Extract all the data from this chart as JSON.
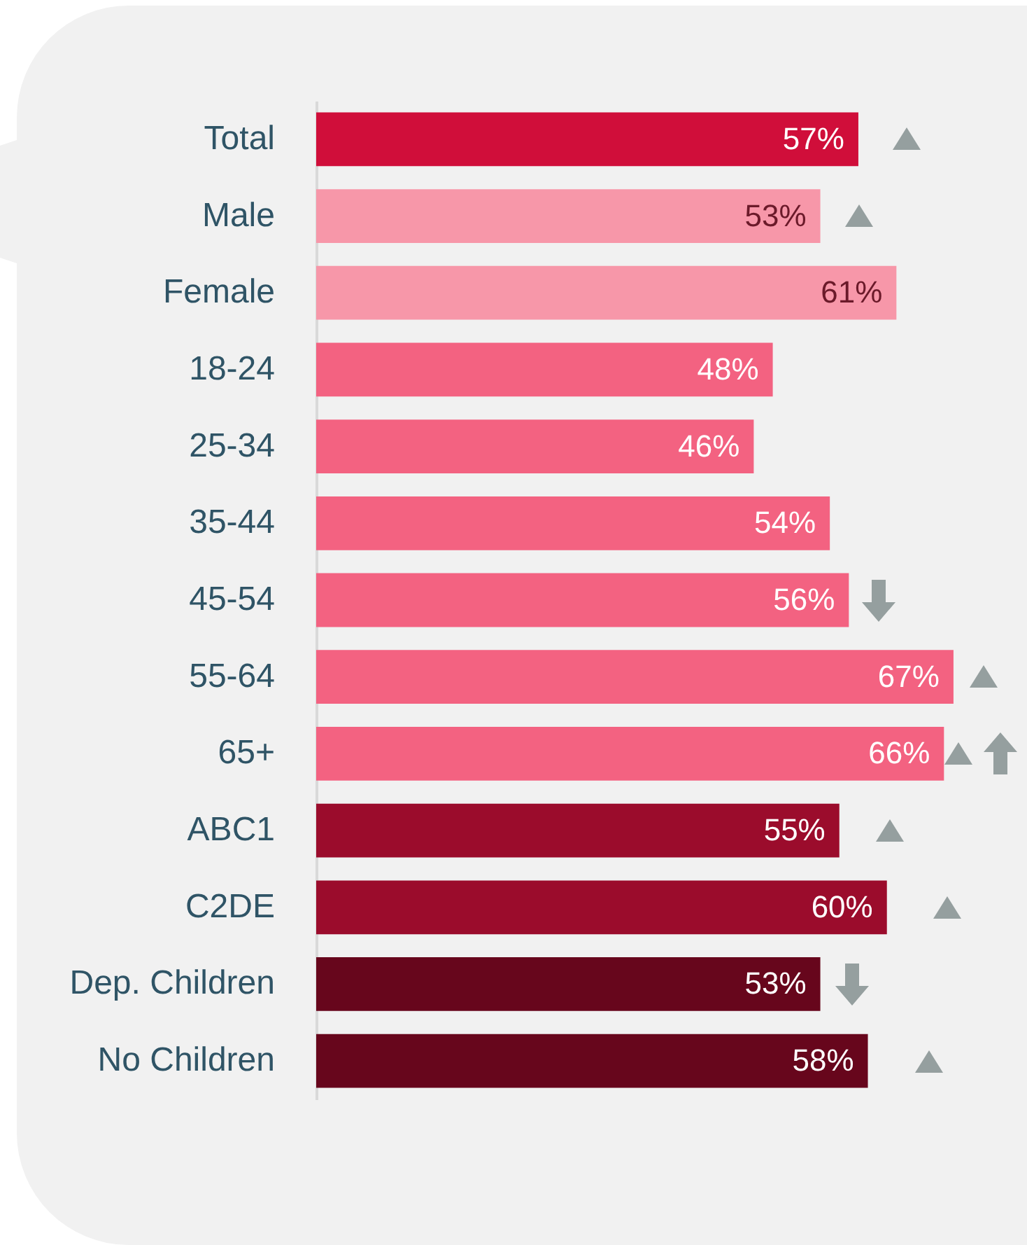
{
  "chart_data": {
    "type": "bar",
    "orientation": "horizontal",
    "value_labels": [
      "57%",
      "53%",
      "61%",
      "48%",
      "46%",
      "54%",
      "56%",
      "67%",
      "66%",
      "55%",
      "60%",
      "53%",
      "58%"
    ],
    "categories": [
      "Total",
      "Male",
      "Female",
      "18-24",
      "25-34",
      "35-44",
      "45-54",
      "55-64",
      "65+",
      "ABC1",
      "C2DE",
      "Dep. Children",
      "No Children"
    ],
    "values": [
      57,
      53,
      61,
      48,
      46,
      54,
      56,
      67,
      66,
      55,
      60,
      53,
      58
    ],
    "colors": [
      "#d00e3a",
      "#f797a9",
      "#f797a9",
      "#f36281",
      "#f36281",
      "#f36281",
      "#f36281",
      "#f36281",
      "#f36281",
      "#9b0c2c",
      "#9b0c2c",
      "#67061c",
      "#67061c"
    ]
  }
}
